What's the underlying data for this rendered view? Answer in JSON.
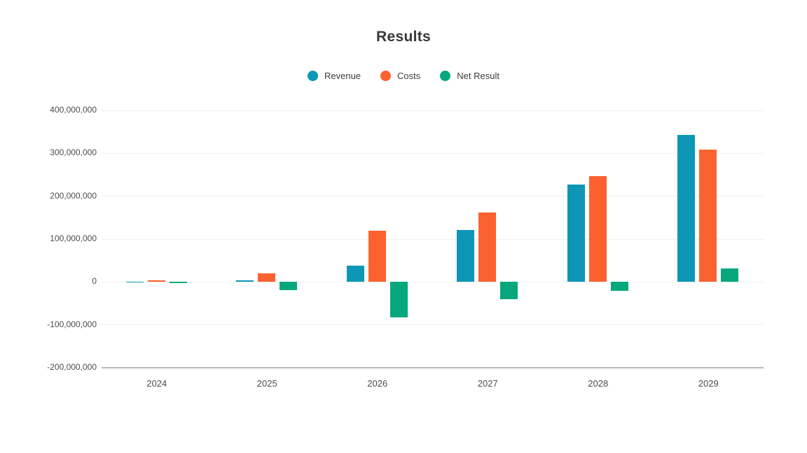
{
  "title": "Results",
  "chart_data": {
    "type": "bar",
    "categories": [
      "2024",
      "2025",
      "2026",
      "2027",
      "2028",
      "2029"
    ],
    "series": [
      {
        "name": "Revenue",
        "color": "#0e96b6",
        "values": [
          300000,
          4000000,
          38000000,
          122000000,
          227000000,
          343000000
        ]
      },
      {
        "name": "Costs",
        "color": "#fb6230",
        "values": [
          3000000,
          20000000,
          119000000,
          162000000,
          246000000,
          309000000
        ]
      },
      {
        "name": "Net Result",
        "color": "#07a77d",
        "values": [
          -3000000,
          -19000000,
          -82000000,
          -40000000,
          -21000000,
          32000000
        ]
      }
    ],
    "ylim": [
      -200000000,
      400000000
    ],
    "ytick_step": 100000000,
    "ytick_labels": [
      "400,000,000",
      "300,000,000",
      "200,000,000",
      "100,000,000",
      "0",
      "-100,000,000",
      "-200,000,000"
    ],
    "grid": true,
    "legend_position": "top",
    "xlabel": "",
    "ylabel": ""
  },
  "colors": {
    "background": "#ffffff",
    "grid": "#efefef",
    "axis_baseline": "#b8b8b8",
    "title_text": "#383838",
    "tick_text": "#4b4b4b"
  }
}
